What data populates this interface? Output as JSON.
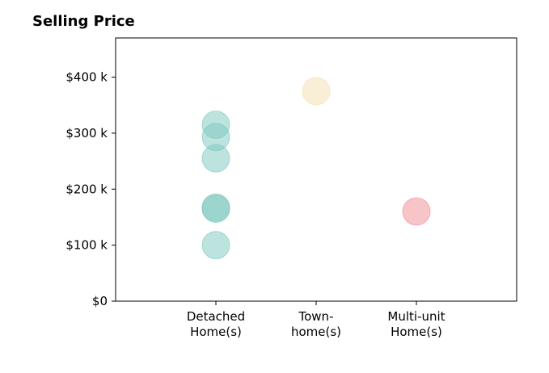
{
  "chart_data": {
    "type": "scatter",
    "title": "Selling Price",
    "xlabel": "",
    "ylabel": "",
    "categories": [
      [
        "Detached",
        "Home(s)"
      ],
      [
        "Town-",
        "home(s)"
      ],
      [
        "Multi-unit",
        "Home(s)"
      ]
    ],
    "xlim": [
      0,
      4
    ],
    "ylim": [
      0,
      470
    ],
    "y_ticks": [
      0,
      100,
      200,
      300,
      400
    ],
    "y_tick_labels": [
      "$0",
      "$100 k",
      "$200 k",
      "$300 k",
      "$400 k"
    ],
    "series": [
      {
        "category": "Detached Home(s)",
        "color": "#7cc7bd",
        "values": [
          315,
          293,
          255,
          167,
          165,
          100
        ]
      },
      {
        "category": "Town-home(s)",
        "color": "#f3dfb0",
        "values": [
          375
        ]
      },
      {
        "category": "Multi-unit Home(s)",
        "color": "#f08a92",
        "values": [
          160
        ]
      }
    ],
    "grid": false,
    "legend": "none"
  }
}
